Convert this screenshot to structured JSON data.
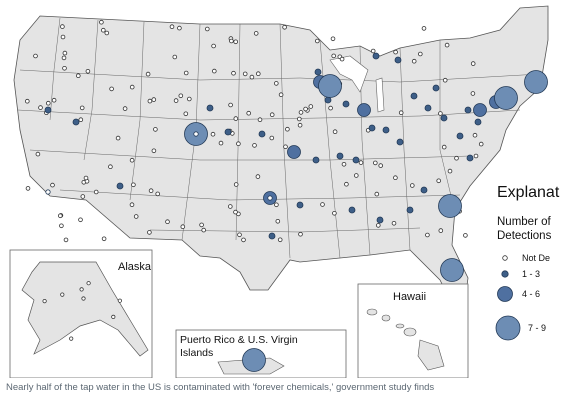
{
  "map": {
    "insets": {
      "alaska": "Alaska",
      "hawaii": "Hawaii",
      "puerto_rico_line1": "Puerto Rico & U.S. Virgin",
      "puerto_rico_line2": "Islands"
    },
    "colors": {
      "land": "#e4e4e4",
      "border": "#555555",
      "marker_fill": "#3e5f88",
      "marker_fill_large": "#6d8db4",
      "marker_stroke": "#233a57",
      "not_detected": "#ffffff"
    }
  },
  "legend": {
    "title": "Explanat",
    "subtitle_line1": "Number of",
    "subtitle_line2": "Detections",
    "items": [
      {
        "label": "Not De",
        "kind": "not-detected"
      },
      {
        "label": "1 - 3",
        "kind": "small"
      },
      {
        "label": "4 - 6",
        "kind": "medium"
      },
      {
        "label": "7 - 9",
        "kind": "large"
      }
    ]
  },
  "caption": "Nearly half of the tap water in the US is contaminated with 'forever chemicals,' government study finds"
}
